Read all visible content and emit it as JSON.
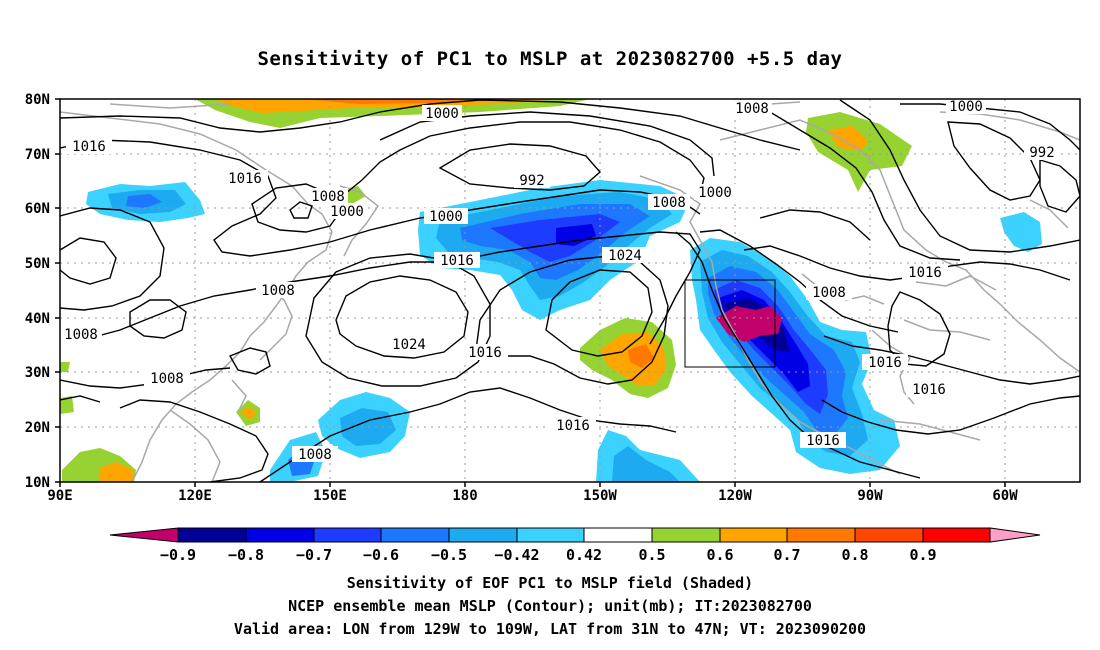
{
  "title": "Sensitivity of PC1 to MSLP at 2023082700 +5.5 day",
  "axes": {
    "lat_labels": [
      "80N",
      "70N",
      "60N",
      "50N",
      "40N",
      "30N",
      "20N",
      "10N"
    ],
    "lon_labels": [
      "90E",
      "120E",
      "150E",
      "180",
      "150W",
      "120W",
      "90W",
      "60W"
    ]
  },
  "contour_labels": [
    {
      "text": "1000"
    },
    {
      "text": "1008"
    },
    {
      "text": "1000"
    },
    {
      "text": "1016"
    },
    {
      "text": "992"
    },
    {
      "text": "1016"
    },
    {
      "text": "1008"
    },
    {
      "text": "1000"
    },
    {
      "text": "1000"
    },
    {
      "text": "1008"
    },
    {
      "text": "992"
    },
    {
      "text": "1000"
    },
    {
      "text": "1016"
    },
    {
      "text": "1024"
    },
    {
      "text": "1008"
    },
    {
      "text": "1008"
    },
    {
      "text": "1016"
    },
    {
      "text": "1008"
    },
    {
      "text": "1024"
    },
    {
      "text": "1016"
    },
    {
      "text": "1016"
    },
    {
      "text": "1008"
    },
    {
      "text": "1016"
    },
    {
      "text": "1016"
    },
    {
      "text": "1016"
    },
    {
      "text": "1008"
    }
  ],
  "colorbar": {
    "colors": [
      "#c2006b",
      "#000096",
      "#0000e6",
      "#1e3cff",
      "#1e78ff",
      "#1eaaf0",
      "#3cd2ff",
      "#ffffff",
      "#96d232",
      "#ffa500",
      "#ff7800",
      "#ff4600",
      "#ff0000",
      "#ff9fc8"
    ],
    "labels": [
      "−0.9",
      "−0.8",
      "−0.7",
      "−0.6",
      "−0.5",
      "−0.42",
      "0.42",
      "0.5",
      "0.6",
      "0.7",
      "0.8",
      "0.9"
    ]
  },
  "captions": {
    "line1": "Sensitivity of EOF PC1 to MSLP field (Shaded)",
    "line2": "NCEP ensemble mean MSLP (Contour); unit(mb); IT:2023082700",
    "line3": "Valid area: LON from 129W to 109W, LAT from 31N to 47N; VT: 2023090200"
  }
}
